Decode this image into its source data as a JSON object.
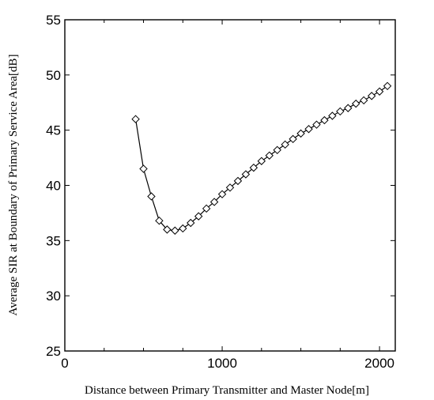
{
  "chart_data": {
    "type": "line",
    "title": "",
    "xlabel": "Distance between Primary Transmitter and Master Node[m]",
    "ylabel": "Average SIR at Boundary of Primary Service Area[dB]",
    "xlim": [
      0,
      2100
    ],
    "ylim": [
      25,
      55
    ],
    "xticks": [
      0,
      1000,
      2000
    ],
    "yticks": [
      25,
      30,
      35,
      40,
      45,
      50,
      55
    ],
    "grid": false,
    "series": [
      {
        "marker": "diamond",
        "color": "#000000",
        "x": [
          450,
          500,
          550,
          600,
          650,
          700,
          750,
          800,
          850,
          900,
          950,
          1000,
          1050,
          1100,
          1150,
          1200,
          1250,
          1300,
          1350,
          1400,
          1450,
          1500,
          1550,
          1600,
          1650,
          1700,
          1750,
          1800,
          1850,
          1900,
          1950,
          2000,
          2050
        ],
        "y": [
          46.0,
          41.5,
          39.0,
          36.8,
          36.0,
          35.9,
          36.1,
          36.6,
          37.2,
          37.9,
          38.5,
          39.2,
          39.8,
          40.4,
          41.0,
          41.6,
          42.2,
          42.7,
          43.2,
          43.7,
          44.2,
          44.7,
          45.1,
          45.5,
          45.9,
          46.3,
          46.7,
          47.0,
          47.4,
          47.7,
          48.1,
          48.5,
          49.0
        ]
      }
    ]
  }
}
